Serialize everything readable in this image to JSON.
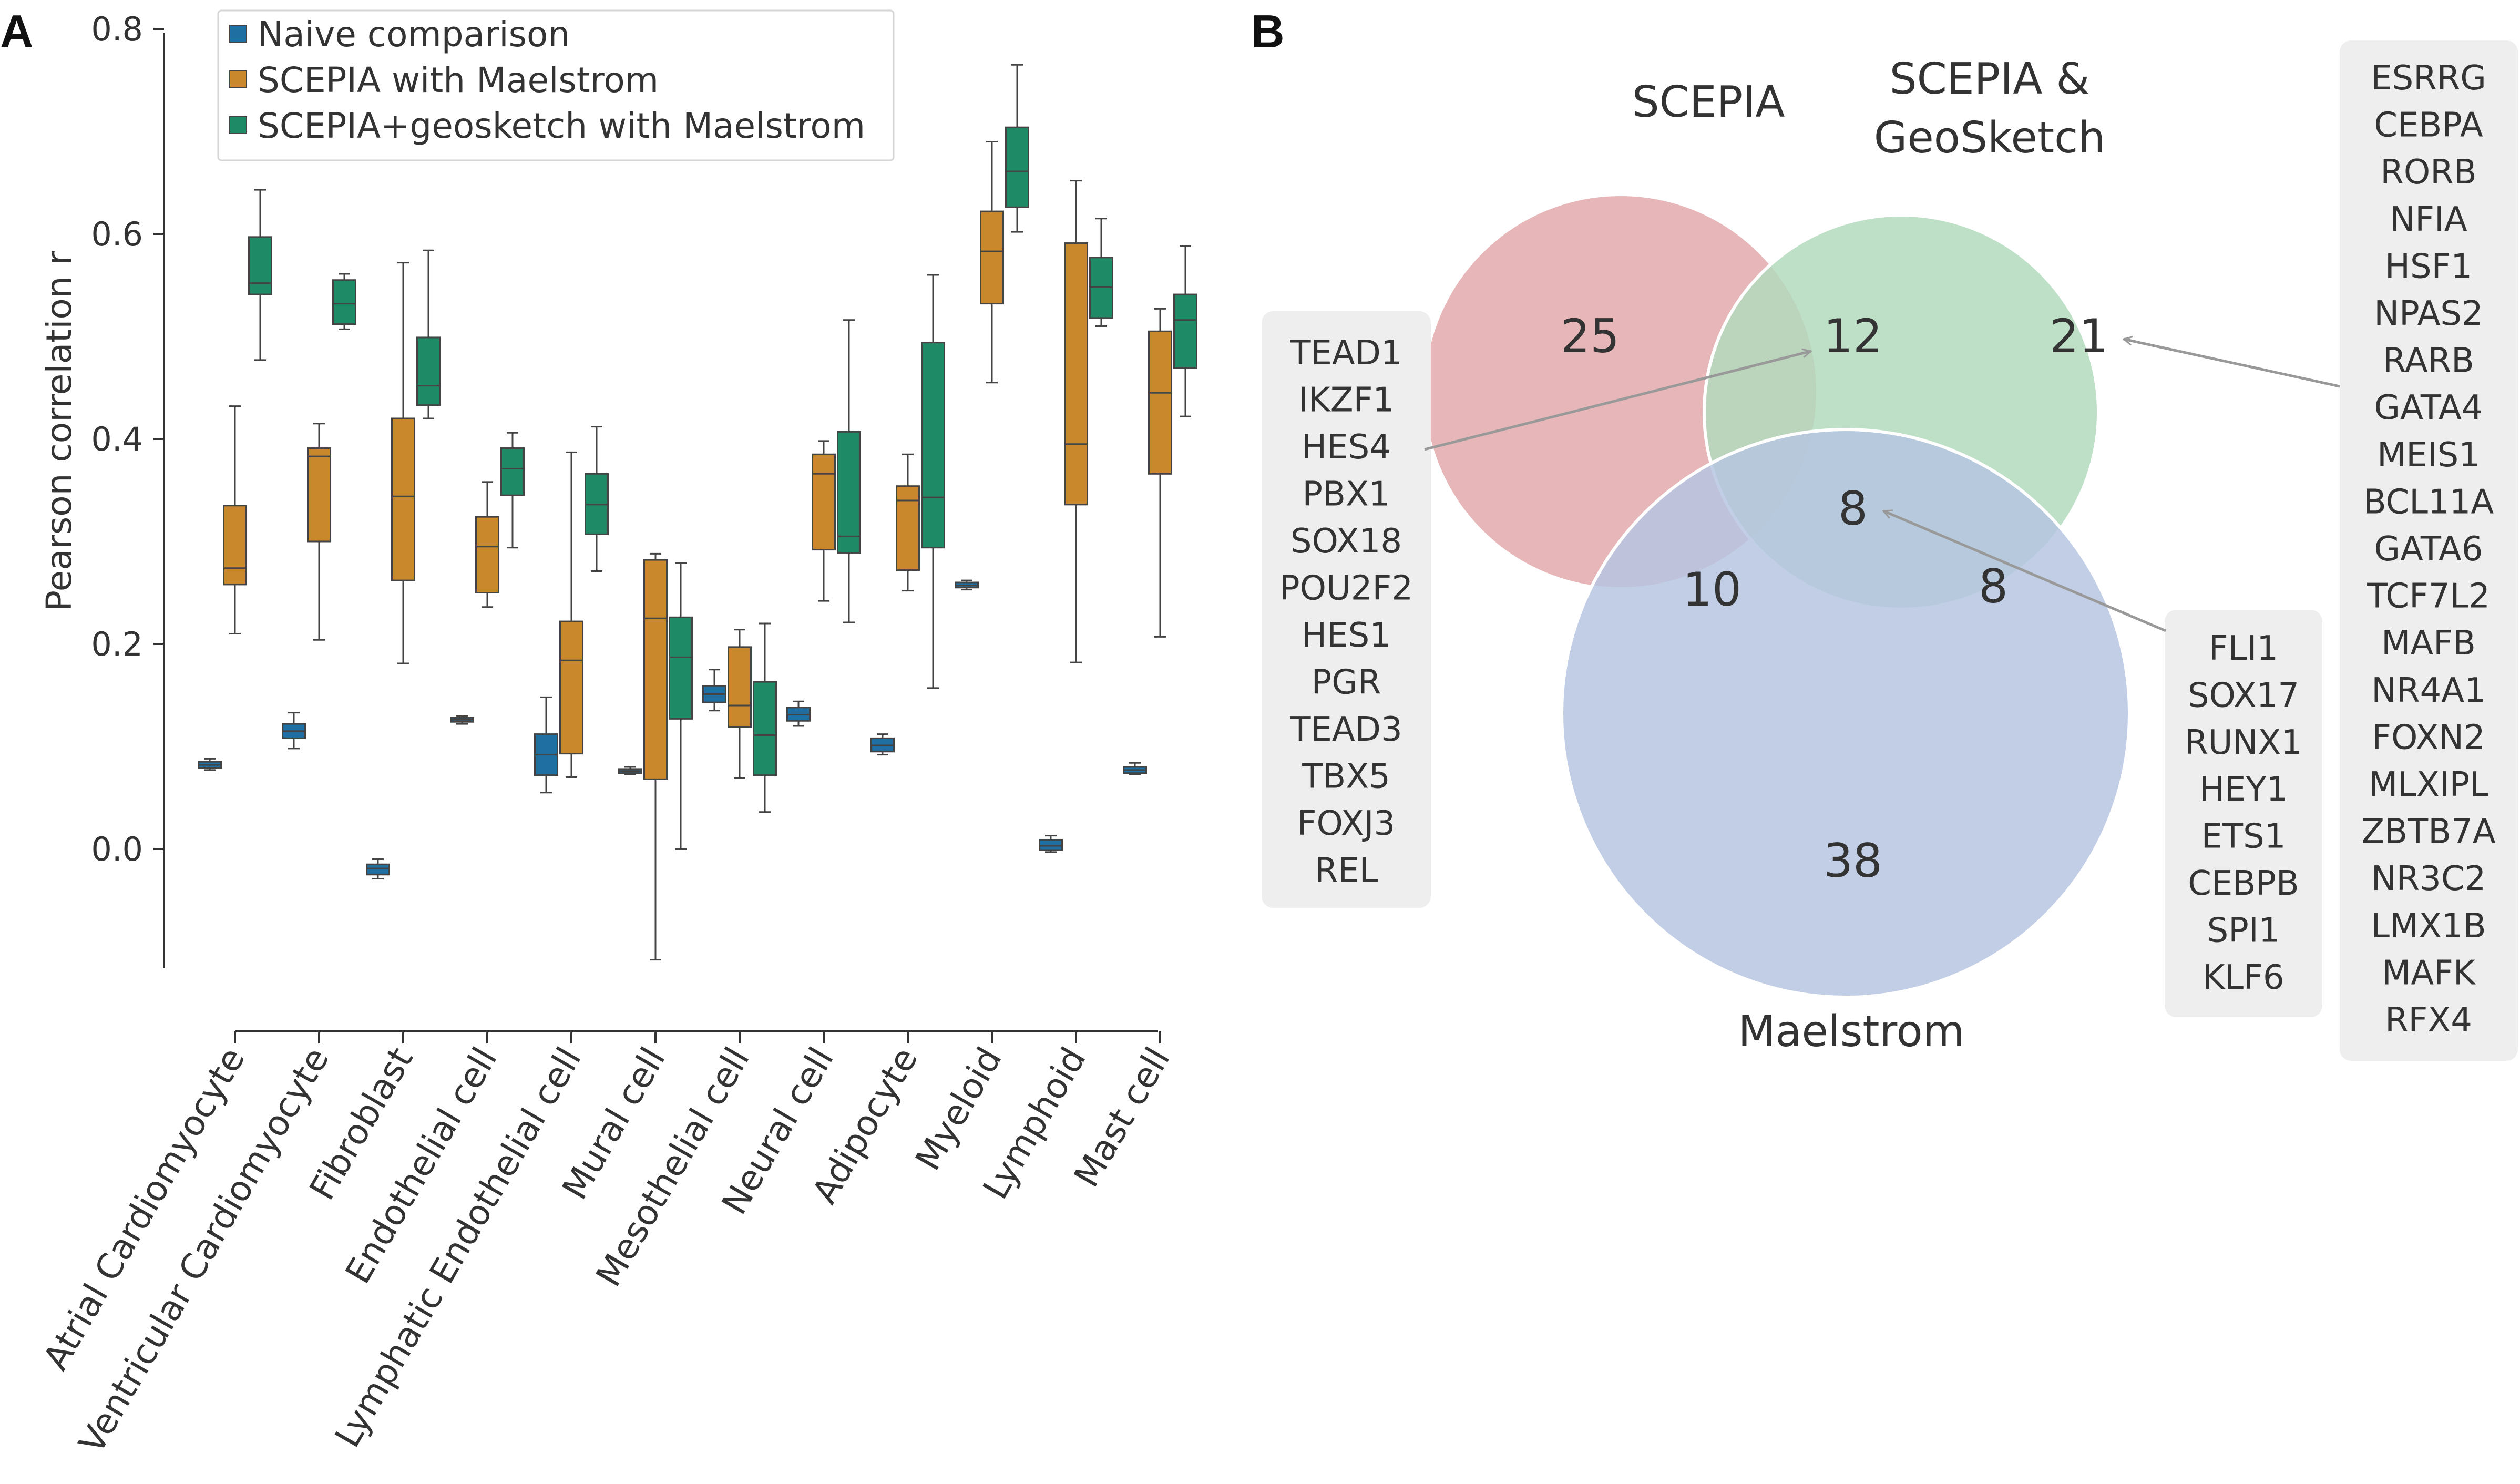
{
  "panel_a_label": "A",
  "panel_b_label": "B",
  "chart_data": [
    {
      "type": "box",
      "panel": "A",
      "ylabel": "Pearson correlation r",
      "ylim": [
        -0.15,
        0.8
      ],
      "yticks": [
        0.0,
        0.2,
        0.4,
        0.6,
        0.8
      ],
      "ytick_labels": [
        "0.0",
        "0.2",
        "0.4",
        "0.6",
        "0.8"
      ],
      "legend_position": "top-left",
      "categories": [
        "Atrial Cardiomyocyte",
        "Ventricular Cardiomyocyte",
        "Fibroblast",
        "Endothelial cell",
        "Lymphatic Endothelial cell",
        "Mural cell",
        "Mesothelial cell",
        "Neural cell",
        "Adipocyte",
        "Myeloid",
        "Lymphoid",
        "Mast cell"
      ],
      "series": [
        {
          "name": "Naive comparison",
          "color": "#1f6fa3",
          "boxes": [
            {
              "min": 0.077,
              "q1": 0.079,
              "median": 0.082,
              "q3": 0.085,
              "max": 0.088
            },
            {
              "min": 0.098,
              "q1": 0.108,
              "median": 0.115,
              "q3": 0.122,
              "max": 0.133
            },
            {
              "min": -0.029,
              "q1": -0.025,
              "median": -0.019,
              "q3": -0.015,
              "max": -0.01
            },
            {
              "min": 0.122,
              "q1": 0.124,
              "median": 0.126,
              "q3": 0.128,
              "max": 0.13
            },
            {
              "min": 0.055,
              "q1": 0.072,
              "median": 0.092,
              "q3": 0.112,
              "max": 0.148
            },
            {
              "min": 0.073,
              "q1": 0.074,
              "median": 0.076,
              "q3": 0.078,
              "max": 0.08
            },
            {
              "min": 0.135,
              "q1": 0.143,
              "median": 0.151,
              "q3": 0.159,
              "max": 0.175
            },
            {
              "min": 0.12,
              "q1": 0.125,
              "median": 0.131,
              "q3": 0.138,
              "max": 0.144
            },
            {
              "min": 0.092,
              "q1": 0.095,
              "median": 0.101,
              "q3": 0.108,
              "max": 0.112
            },
            {
              "min": 0.253,
              "q1": 0.255,
              "median": 0.257,
              "q3": 0.26,
              "max": 0.262
            },
            {
              "min": -0.003,
              "q1": -0.001,
              "median": 0.003,
              "q3": 0.009,
              "max": 0.013
            },
            {
              "min": 0.073,
              "q1": 0.074,
              "median": 0.077,
              "q3": 0.08,
              "max": 0.084
            }
          ]
        },
        {
          "name": "SCEPIA with Maelstrom",
          "color": "#c9882b",
          "boxes": [
            {
              "min": 0.21,
              "q1": 0.258,
              "median": 0.274,
              "q3": 0.335,
              "max": 0.432
            },
            {
              "min": 0.204,
              "q1": 0.3,
              "median": 0.383,
              "q3": 0.391,
              "max": 0.415
            },
            {
              "min": 0.181,
              "q1": 0.262,
              "median": 0.344,
              "q3": 0.42,
              "max": 0.572
            },
            {
              "min": 0.236,
              "q1": 0.25,
              "median": 0.295,
              "q3": 0.324,
              "max": 0.358
            },
            {
              "min": 0.07,
              "q1": 0.093,
              "median": 0.184,
              "q3": 0.222,
              "max": 0.387
            },
            {
              "min": -0.108,
              "q1": 0.068,
              "median": 0.225,
              "q3": 0.282,
              "max": 0.288
            },
            {
              "min": 0.069,
              "q1": 0.119,
              "median": 0.14,
              "q3": 0.197,
              "max": 0.214
            },
            {
              "min": 0.242,
              "q1": 0.292,
              "median": 0.366,
              "q3": 0.385,
              "max": 0.398
            },
            {
              "min": 0.252,
              "q1": 0.272,
              "median": 0.34,
              "q3": 0.354,
              "max": 0.385
            },
            {
              "min": 0.455,
              "q1": 0.532,
              "median": 0.583,
              "q3": 0.622,
              "max": 0.69
            },
            {
              "min": 0.182,
              "q1": 0.336,
              "median": 0.395,
              "q3": 0.591,
              "max": 0.652
            },
            {
              "min": 0.207,
              "q1": 0.366,
              "median": 0.445,
              "q3": 0.505,
              "max": 0.527
            }
          ]
        },
        {
          "name": "SCEPIA+geosketch with Maelstrom",
          "color": "#1e8a66",
          "boxes": [
            {
              "min": 0.477,
              "q1": 0.541,
              "median": 0.552,
              "q3": 0.597,
              "max": 0.643
            },
            {
              "min": 0.507,
              "q1": 0.512,
              "median": 0.532,
              "q3": 0.555,
              "max": 0.561
            },
            {
              "min": 0.42,
              "q1": 0.433,
              "median": 0.452,
              "q3": 0.499,
              "max": 0.584
            },
            {
              "min": 0.294,
              "q1": 0.345,
              "median": 0.371,
              "q3": 0.391,
              "max": 0.406
            },
            {
              "min": 0.271,
              "q1": 0.307,
              "median": 0.336,
              "q3": 0.366,
              "max": 0.412
            },
            {
              "min": 0.0,
              "q1": 0.127,
              "median": 0.187,
              "q3": 0.226,
              "max": 0.279
            },
            {
              "min": 0.036,
              "q1": 0.072,
              "median": 0.111,
              "q3": 0.163,
              "max": 0.22
            },
            {
              "min": 0.221,
              "q1": 0.289,
              "median": 0.305,
              "q3": 0.407,
              "max": 0.516
            },
            {
              "min": 0.157,
              "q1": 0.294,
              "median": 0.343,
              "q3": 0.494,
              "max": 0.56
            },
            {
              "min": 0.602,
              "q1": 0.626,
              "median": 0.661,
              "q3": 0.704,
              "max": 0.765
            },
            {
              "min": 0.51,
              "q1": 0.518,
              "median": 0.548,
              "q3": 0.577,
              "max": 0.615
            },
            {
              "min": 0.422,
              "q1": 0.469,
              "median": 0.516,
              "q3": 0.541,
              "max": 0.588
            }
          ]
        }
      ]
    },
    {
      "type": "venn",
      "panel": "B",
      "sets": [
        {
          "name": "SCEPIA",
          "color": "#e3a9ac"
        },
        {
          "name": "SCEPIA & GeoSketch",
          "name_lines": [
            "SCEPIA &",
            "GeoSketch"
          ],
          "color": "#b3dbbd"
        },
        {
          "name": "Maelstrom",
          "color": "#b6c6e1"
        }
      ],
      "regions": [
        {
          "sets": [
            "SCEPIA"
          ],
          "size": 25
        },
        {
          "sets": [
            "SCEPIA",
            "SCEPIA & GeoSketch"
          ],
          "size": 12
        },
        {
          "sets": [
            "SCEPIA & GeoSketch"
          ],
          "size": 21
        },
        {
          "sets": [
            "SCEPIA",
            "Maelstrom"
          ],
          "size": 10
        },
        {
          "sets": [
            "SCEPIA",
            "SCEPIA & GeoSketch",
            "Maelstrom"
          ],
          "size": 8
        },
        {
          "sets": [
            "SCEPIA & GeoSketch",
            "Maelstrom"
          ],
          "size": 8
        },
        {
          "sets": [
            "Maelstrom"
          ],
          "size": 38
        }
      ],
      "gene_lists": [
        {
          "region": "SCEPIA ∩ SCEPIA & GeoSketch",
          "genes": [
            "TEAD1",
            "IKZF1",
            "HES4",
            "PBX1",
            "SOX18",
            "POU2F2",
            "HES1",
            "PGR",
            "TEAD3",
            "TBX5",
            "FOXJ3",
            "REL"
          ]
        },
        {
          "region": "SCEPIA ∩ SCEPIA & GeoSketch ∩ Maelstrom",
          "genes": [
            "FLI1",
            "SOX17",
            "RUNX1",
            "HEY1",
            "ETS1",
            "CEBPB",
            "SPI1",
            "KLF6"
          ]
        },
        {
          "region": "SCEPIA & GeoSketch only",
          "genes": [
            "ESRRG",
            "CEBPA",
            "RORB",
            "NFIA",
            "HSF1",
            "NPAS2",
            "RARB",
            "GATA4",
            "MEIS1",
            "BCL11A",
            "GATA6",
            "TCF7L2",
            "MAFB",
            "NR4A1",
            "FOXN2",
            "MLXIPL",
            "ZBTB7A",
            "NR3C2",
            "LMX1B",
            "MAFK",
            "RFX4"
          ]
        }
      ]
    }
  ]
}
